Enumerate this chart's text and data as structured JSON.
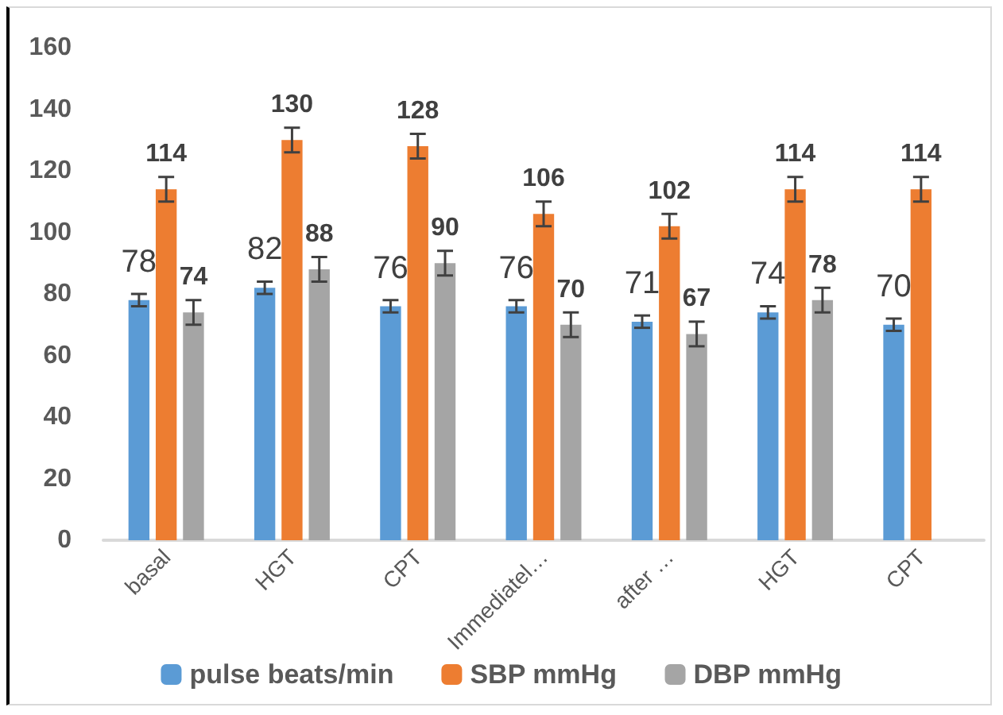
{
  "chart_data": {
    "type": "bar",
    "categories": [
      "basal",
      "HGT",
      "CPT",
      "Immediatel…",
      "after …",
      "HGT",
      "CPT"
    ],
    "series": [
      {
        "name": "pulse beats/min",
        "color": "#5b9bd5",
        "values": [
          78,
          82,
          76,
          76,
          71,
          74,
          70
        ],
        "errors": [
          2,
          2,
          2,
          2,
          2,
          2,
          2
        ]
      },
      {
        "name": "SBP mmHg",
        "color": "#ed7d31",
        "values": [
          114,
          130,
          128,
          106,
          102,
          114,
          114
        ],
        "errors": [
          4,
          4,
          4,
          4,
          4,
          4,
          4
        ]
      },
      {
        "name": "DBP mmHg",
        "color": "#a5a5a5",
        "values": [
          74,
          88,
          90,
          70,
          67,
          78,
          null
        ],
        "errors": [
          4,
          4,
          4,
          4,
          4,
          4,
          null
        ]
      }
    ],
    "ylim": [
      0,
      160
    ],
    "yticks": [
      0,
      20,
      40,
      60,
      80,
      100,
      120,
      140,
      160
    ],
    "data_labels": true,
    "grid": false,
    "legend": "bottom"
  }
}
